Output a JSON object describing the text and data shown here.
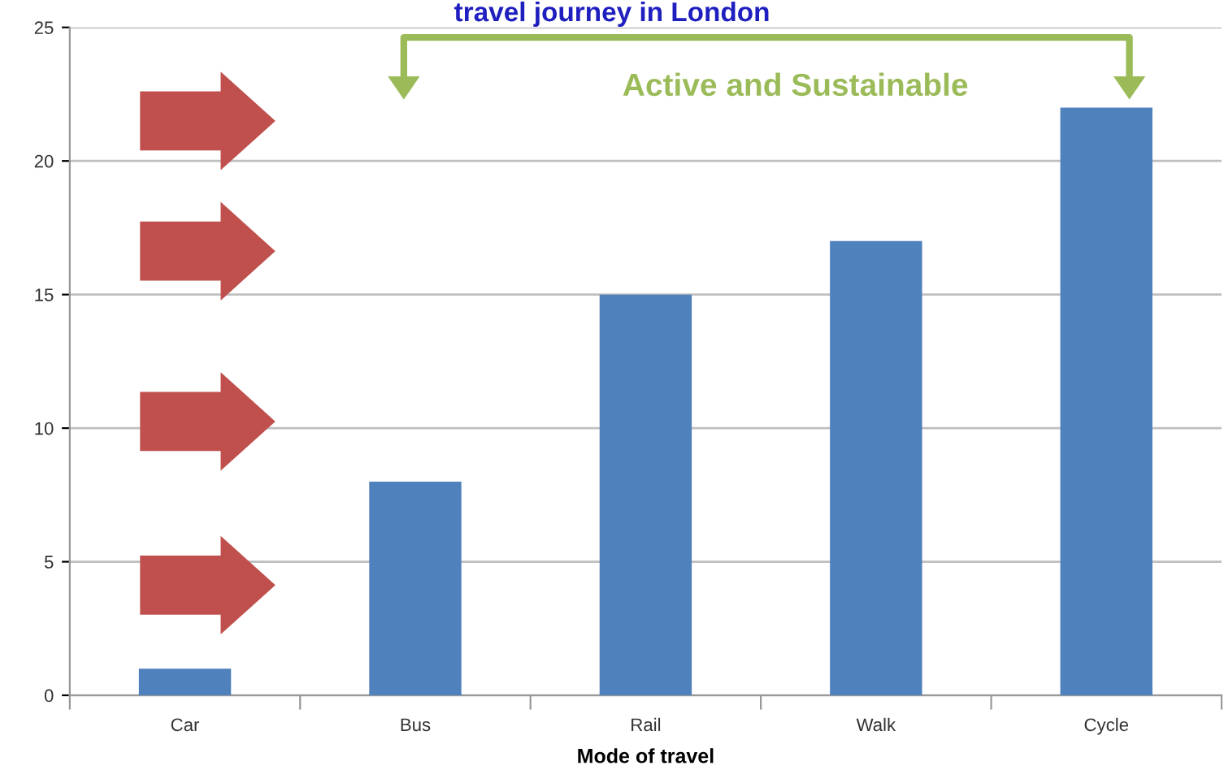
{
  "chart_data": {
    "type": "bar",
    "title": "travel journey in London",
    "xlabel": "Mode of travel",
    "categories": [
      "Car",
      "Bus",
      "Rail",
      "Walk",
      "Cycle"
    ],
    "values": [
      1,
      8,
      15,
      17,
      22
    ],
    "color": "#4f81bd",
    "ylim": [
      0,
      25
    ],
    "yticks": [
      0,
      5,
      10,
      15,
      20,
      25
    ],
    "grid": "y",
    "legend": false,
    "annotations": [
      "Active and Sustainable"
    ]
  }
}
